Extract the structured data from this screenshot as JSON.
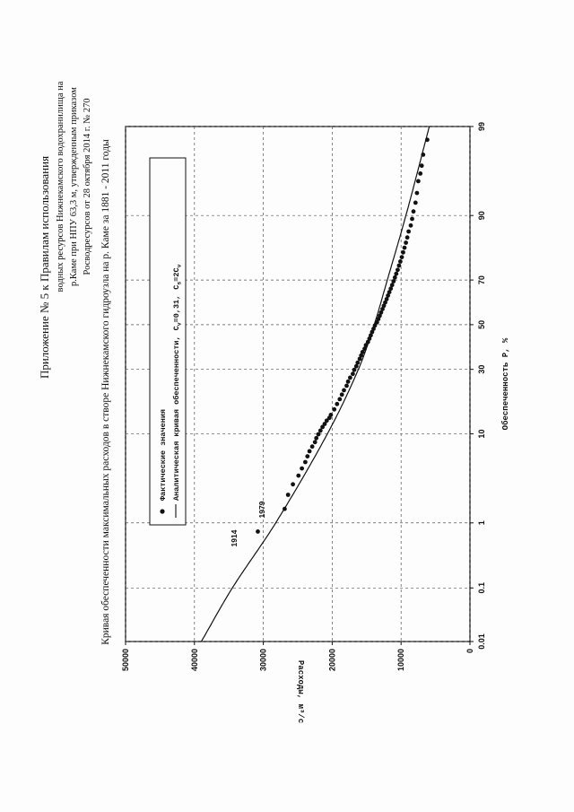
{
  "header": {
    "appendix_title": "Приложение № 5 к Правилам использования",
    "lines": [
      "водных ресурсов Нижнекамского водохранилища на",
      "р.Каме при НПУ 63,3 м, утвержденным приказом",
      "Росводресурсов от 28 октября 2014 г. № 270"
    ]
  },
  "chart_data": {
    "type": "scatter",
    "title": "Кривая обеспеченности максимальных расходов в створе Нижнекамского гидроузла на р. Каме за 1881 - 2011 годы",
    "xlabel": "Обеспеченность P, %",
    "ylabel": "Расходы, м³/с",
    "x_scale": "probability",
    "xlim": [
      0.01,
      99
    ],
    "ylim": [
      0,
      50000
    ],
    "x_ticks": [
      0.01,
      0.1,
      1,
      10,
      30,
      50,
      70,
      90,
      99
    ],
    "x_tick_labels": [
      "0.01",
      "0.1",
      "1",
      "10",
      "30",
      "50",
      "70",
      "90",
      "99"
    ],
    "y_ticks": [
      0,
      10000,
      20000,
      30000,
      40000,
      50000
    ],
    "y_tick_labels": [
      "0",
      "10000",
      "20000",
      "30000",
      "40000",
      "50000"
    ],
    "grid": true,
    "legend_position": "top-left",
    "legend": {
      "points_label": "Фактические значения",
      "curve_prefix": "Аналитическая кривая обеспеченности,",
      "cv_label": "C",
      "cv_sub": "v",
      "cv_value": "=0,31,",
      "cs_label": "C",
      "cs_sub": "s",
      "cs_value": "=2C",
      "cs_tail_sub": "v"
    },
    "annotations": [
      {
        "text": "1914",
        "x": 0.76,
        "y": 30800
      },
      {
        "text": "1979",
        "x": 1.53,
        "y": 26900
      }
    ],
    "series": [
      {
        "name": "Фактические значения",
        "kind": "points",
        "x": [
          0.76,
          1.53,
          2.29,
          3.05,
          3.82,
          4.58,
          5.34,
          6.11,
          6.87,
          7.63,
          8.4,
          9.16,
          9.92,
          10.7,
          11.5,
          12.2,
          13.0,
          13.7,
          14.5,
          16.0,
          17.6,
          19.1,
          20.6,
          22.1,
          23.7,
          25.2,
          26.7,
          28.2,
          29.8,
          31.3,
          32.8,
          34.4,
          35.9,
          37.4,
          38.9,
          40.5,
          42.0,
          43.5,
          45.0,
          46.6,
          48.1,
          49.6,
          51.1,
          52.7,
          54.2,
          55.7,
          57.3,
          58.8,
          60.3,
          61.8,
          63.4,
          64.9,
          66.4,
          67.9,
          69.5,
          71.0,
          72.5,
          74.0,
          75.6,
          77.1,
          78.6,
          80.2,
          81.7,
          83.2,
          84.7,
          86.3,
          87.8,
          89.3,
          90.8,
          92.4,
          93.9,
          95.4,
          96.2,
          96.9,
          97.7,
          98.5
        ],
        "y": [
          30800,
          26900,
          26400,
          25700,
          24900,
          24400,
          23900,
          23600,
          23300,
          22900,
          22500,
          22300,
          22000,
          21700,
          21400,
          21100,
          20800,
          20400,
          20200,
          19700,
          19300,
          18900,
          18600,
          18300,
          17900,
          17700,
          17400,
          17000,
          16800,
          16500,
          16300,
          16000,
          15800,
          15600,
          15300,
          15100,
          14800,
          14600,
          14400,
          14200,
          14000,
          13800,
          13500,
          13300,
          13100,
          12900,
          12700,
          12500,
          12300,
          12100,
          11900,
          11700,
          11500,
          11300,
          11100,
          10900,
          10700,
          10500,
          10300,
          10100,
          9900,
          9700,
          9500,
          9300,
          9100,
          8900,
          8600,
          8400,
          8200,
          7900,
          7700,
          7500,
          7200,
          7000,
          6800,
          6200
        ]
      },
      {
        "name": "Аналитическая кривая обеспеченности",
        "kind": "line",
        "x": [
          0.01,
          0.1,
          1,
          10,
          30,
          50,
          70,
          90,
          99
        ],
        "y": [
          39000,
          34500,
          28200,
          20700,
          16200,
          13900,
          12000,
          9300,
          5900
        ]
      }
    ]
  }
}
